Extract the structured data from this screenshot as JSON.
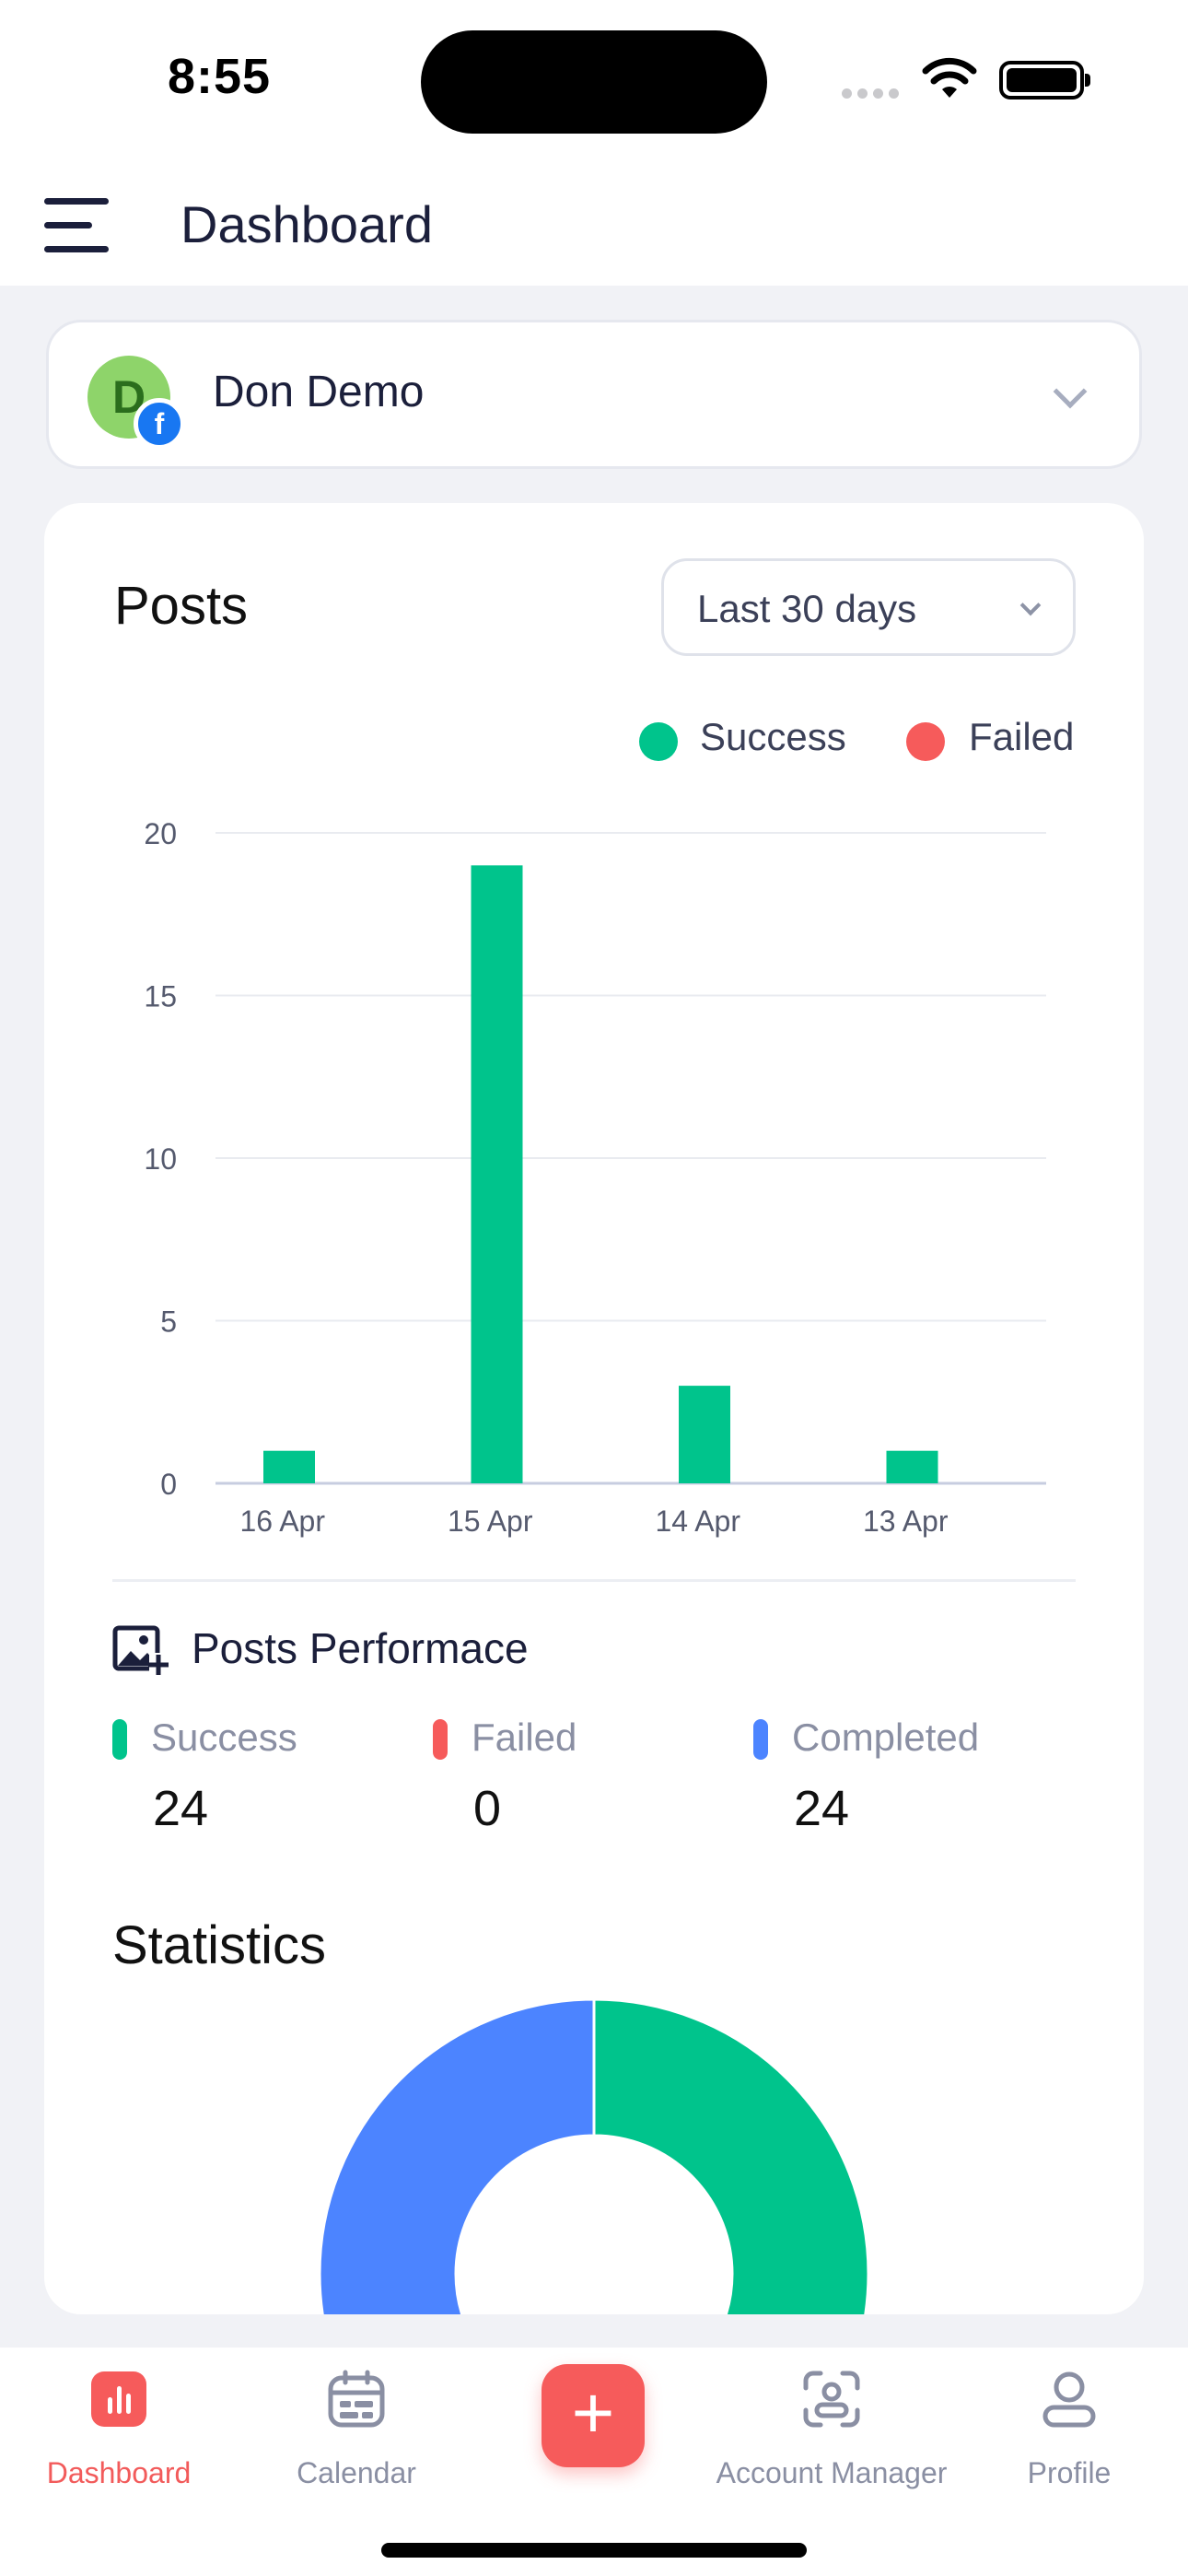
{
  "status_bar": {
    "time": "8:55"
  },
  "header": {
    "title": "Dashboard"
  },
  "account": {
    "name": "Don Demo",
    "initial": "D",
    "network_badge": "f"
  },
  "posts": {
    "title": "Posts",
    "range": "Last 30 days",
    "legend": [
      {
        "label": "Success",
        "color": "#00c48c"
      },
      {
        "label": "Failed",
        "color": "#f65b5b"
      }
    ]
  },
  "chart_data": {
    "type": "bar",
    "categories": [
      "16 Apr",
      "15 Apr",
      "14 Apr",
      "13 Apr"
    ],
    "series": [
      {
        "name": "Success",
        "color": "#00c48c",
        "values": [
          1,
          19,
          3,
          1
        ]
      },
      {
        "name": "Failed",
        "color": "#f65b5b",
        "values": [
          0,
          0,
          0,
          0
        ]
      }
    ],
    "yticks": [
      "0",
      "5",
      "10",
      "15",
      "20"
    ],
    "ylim": [
      0,
      20
    ],
    "grid": true,
    "legend_position": "top-right"
  },
  "performance": {
    "title": "Posts Performace",
    "stats": [
      {
        "label": "Success",
        "value": "24",
        "color": "#00c48c"
      },
      {
        "label": "Failed",
        "value": "0",
        "color": "#f65b5b"
      },
      {
        "label": "Completed",
        "value": "24",
        "color": "#4c84ff"
      }
    ]
  },
  "statistics": {
    "title": "Statistics",
    "donut": [
      {
        "name": "Success",
        "value": 24,
        "color": "#00c48c"
      },
      {
        "name": "Completed",
        "value": 24,
        "color": "#4c84ff"
      }
    ]
  },
  "nav": {
    "items": [
      {
        "label": "Dashboard",
        "icon": "bar-chart-icon",
        "active": true
      },
      {
        "label": "Calendar",
        "icon": "calendar-icon"
      },
      {
        "label": "Account Manager",
        "icon": "account-manager-icon"
      },
      {
        "label": "Profile",
        "icon": "profile-icon"
      }
    ],
    "add_label": "+"
  }
}
